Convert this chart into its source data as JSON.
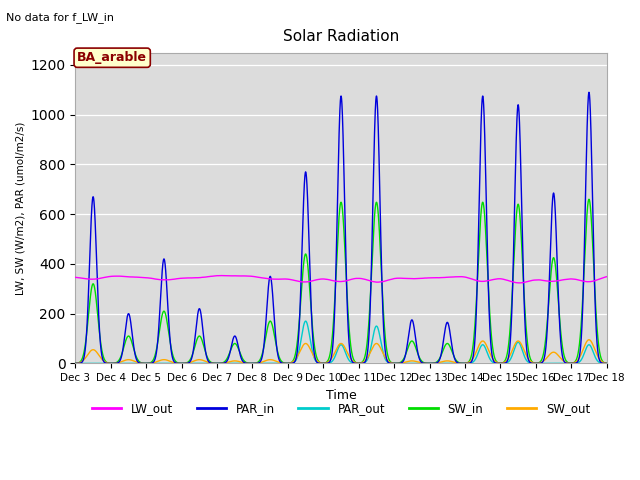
{
  "title": "Solar Radiation",
  "note": "No data for f_LW_in",
  "site_label": "BA_arable",
  "xlabel": "Time",
  "ylabel": "LW, SW (W/m2), PAR (umol/m2/s)",
  "ylim": [
    0,
    1250
  ],
  "yticks": [
    0,
    200,
    400,
    600,
    800,
    1000,
    1200
  ],
  "xtick_labels": [
    "Dec 3",
    "Dec 4",
    "Dec 5",
    "Dec 6",
    "Dec 7",
    "Dec 8",
    "Dec 9",
    "Dec 10",
    "Dec 11",
    "Dec 12",
    "Dec 13",
    "Dec 14",
    "Dec 15",
    "Dec 16",
    "Dec 17",
    "Dec 18"
  ],
  "colors": {
    "LW_out": "#ff00ff",
    "PAR_in": "#0000dd",
    "PAR_out": "#00cccc",
    "SW_in": "#00dd00",
    "SW_out": "#ffaa00",
    "background": "#dcdcdc"
  }
}
